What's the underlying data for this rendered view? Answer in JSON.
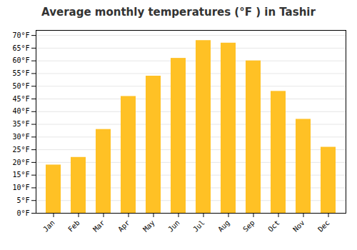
{
  "chart_data": {
    "type": "bar",
    "title": "Average monthly temperatures (°F ) in Tashir",
    "categories": [
      "Jan",
      "Feb",
      "Mar",
      "Apr",
      "May",
      "Jun",
      "Jul",
      "Aug",
      "Sep",
      "Oct",
      "Nov",
      "Dec"
    ],
    "values": [
      19,
      22,
      33,
      46,
      54,
      61,
      68,
      67,
      60,
      48,
      37,
      26
    ],
    "color": "#FFC125",
    "ylim": [
      0,
      72
    ],
    "yticks": [
      {
        "value": 0,
        "label": "0°F"
      },
      {
        "value": 5,
        "label": "5°F"
      },
      {
        "value": 10,
        "label": "10°F"
      },
      {
        "value": 15,
        "label": "15°F"
      },
      {
        "value": 20,
        "label": "20°F"
      },
      {
        "value": 25,
        "label": "25°F"
      },
      {
        "value": 30,
        "label": "30°F"
      },
      {
        "value": 35,
        "label": "35°F"
      },
      {
        "value": 40,
        "label": "40°F"
      },
      {
        "value": 45,
        "label": "45°F"
      },
      {
        "value": 50,
        "label": "50°F"
      },
      {
        "value": 55,
        "label": "55°F"
      },
      {
        "value": 60,
        "label": "60°F"
      },
      {
        "value": 65,
        "label": "65°F"
      },
      {
        "value": 70,
        "label": "70°F"
      }
    ],
    "grid": true
  }
}
